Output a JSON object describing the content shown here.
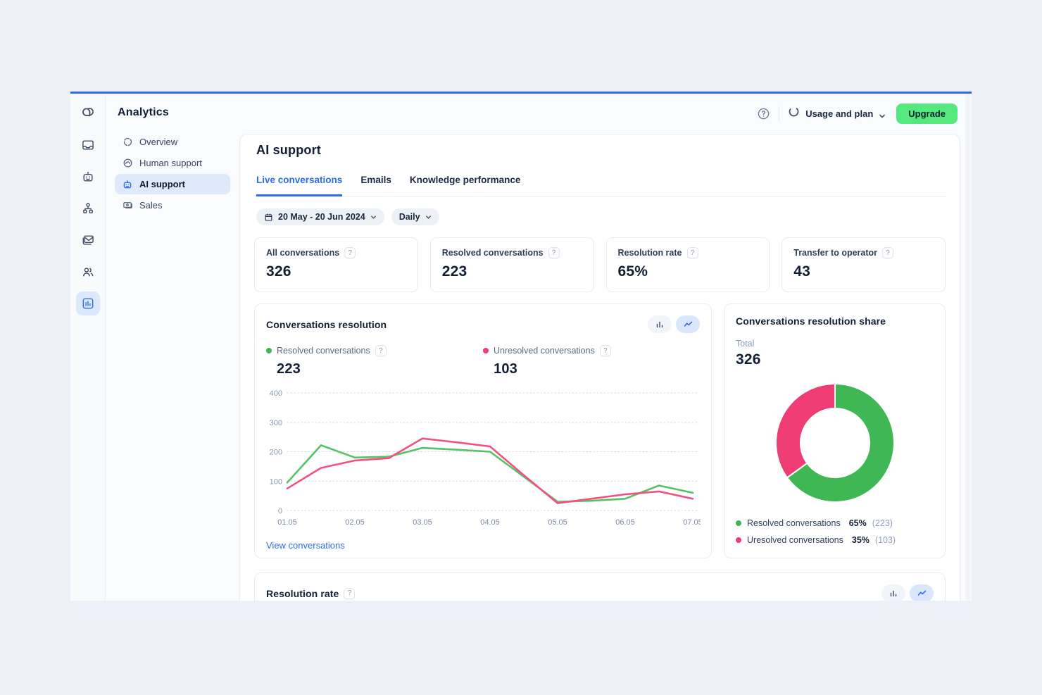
{
  "colors": {
    "accent_blue": "#2f6bef",
    "green": "#3fb754",
    "pink": "#ee3d74",
    "upgrade_green": "#55e97d",
    "page_bg": "#edf0f6"
  },
  "misc": {
    "help_badge": "?"
  },
  "rail": {
    "icons": [
      "tidio-logo",
      "inbox",
      "bot",
      "flows",
      "mail",
      "contacts",
      "analytics"
    ],
    "active_icon": "analytics"
  },
  "header": {
    "title": "Analytics",
    "usage_label": "Usage and plan",
    "upgrade_label": "Upgrade"
  },
  "nav": {
    "items": [
      {
        "label": "Overview",
        "active": false
      },
      {
        "label": "Human support",
        "active": false
      },
      {
        "label": "AI support",
        "active": true
      },
      {
        "label": "Sales",
        "active": false
      }
    ]
  },
  "main": {
    "title": "AI support",
    "tabs": [
      {
        "label": "Live conversations",
        "active": true
      },
      {
        "label": "Emails",
        "active": false
      },
      {
        "label": "Knowledge performance",
        "active": false
      }
    ],
    "filters": {
      "date_range": "20 May - 20 Jun 2024",
      "granularity": "Daily"
    },
    "stats": [
      {
        "label": "All conversations",
        "value": "326"
      },
      {
        "label": "Resolved conversations",
        "value": "223"
      },
      {
        "label": "Resolution rate",
        "value": "65%"
      },
      {
        "label": "Transfer to operator",
        "value": "43"
      }
    ],
    "view_link": "View conversations",
    "bottom_section_title": "Resolution rate"
  },
  "chart_data": [
    {
      "type": "line",
      "title": "Conversations resolution",
      "x_ticks": [
        "01.05",
        "02.05",
        "03.05",
        "04.05",
        "05.05",
        "06.05",
        "07.05"
      ],
      "points_per_tick_interval": 2,
      "ylim": [
        0,
        400
      ],
      "yticks": [
        0,
        100,
        200,
        300,
        400
      ],
      "grid": "dotted-horizontal",
      "legend_position": "top",
      "series": [
        {
          "name": "Resolved conversations",
          "color": "#3fb754",
          "line_color": "#55c268",
          "legend_value": 223,
          "values": [
            95,
            222,
            180,
            183,
            213,
            207,
            200,
            115,
            30,
            33,
            40,
            85,
            60
          ]
        },
        {
          "name": "Unresolved conversations",
          "color": "#ee3d74",
          "line_color": "#f2517f",
          "legend_value": 103,
          "values": [
            75,
            145,
            170,
            178,
            245,
            232,
            218,
            120,
            25,
            40,
            55,
            65,
            40
          ]
        }
      ]
    },
    {
      "type": "pie",
      "subtype": "donut",
      "title": "Conversations resolution share",
      "total_label": "Total",
      "total": 326,
      "slices": [
        {
          "label": "Resolved conversations",
          "pct": 65,
          "pct_label": "65%",
          "count": 223,
          "count_label": "(223)",
          "color": "#3fb754"
        },
        {
          "label": "Uresolved conversations",
          "pct": 35,
          "pct_label": "35%",
          "count": 103,
          "count_label": "(103)",
          "color": "#ee3d74"
        }
      ]
    }
  ]
}
